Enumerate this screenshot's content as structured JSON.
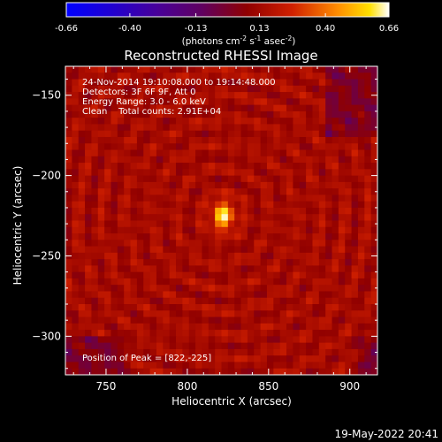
{
  "chart_data": {
    "type": "heatmap",
    "title": "Reconstructed RHESSI Image",
    "xlabel": "Heliocentric X (arcsec)",
    "ylabel": "Heliocentric Y (arcsec)",
    "xlim": [
      725,
      917
    ],
    "ylim": [
      -324,
      -132
    ],
    "x_ticks": [
      750,
      800,
      850,
      900
    ],
    "y_ticks": [
      -150,
      -200,
      -250,
      -300
    ],
    "colorbar": {
      "min": -0.66,
      "max": 0.66,
      "ticks": [
        "-0.66",
        "-0.40",
        "-0.13",
        "0.13",
        "0.40",
        "0.66"
      ],
      "label_pre": "(photons cm",
      "label_sup1": "-2",
      "label_mid": " s",
      "label_sup2": "-1",
      "label_post": " asec",
      "label_sup3": "-2",
      "label_end": ")"
    },
    "annotations": [
      "24-Nov-2014 19:10:08.000 to 19:14:48.000",
      "Detectors: 3F 6F 9F, Att 0",
      "Energy Range: 3.0 - 6.0 keV",
      "Clean    Total counts: 2.91E+04"
    ],
    "peak_label": "Position of Peak = [822,-225]",
    "peak": {
      "x": 822,
      "y": -225,
      "value": 0.66
    },
    "background_level": 0.14,
    "colors": {
      "background": "#000000",
      "text": "#ffffff",
      "colormap": [
        "#0000ff",
        "#3a00a8",
        "#600060",
        "#8a0000",
        "#c81000",
        "#ff6a00",
        "#ffc800",
        "#ffffff"
      ]
    }
  },
  "footer": {
    "date": "19-May-2022 20:41"
  }
}
